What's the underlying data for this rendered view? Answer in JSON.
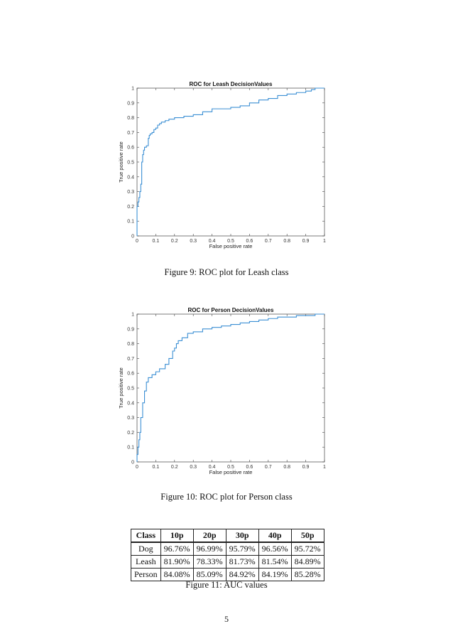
{
  "chart_data": [
    {
      "type": "line",
      "title": "ROC for Leash DecisionValues",
      "xlabel": "False positive rate",
      "ylabel": "True positive rate",
      "xlim": [
        0,
        1
      ],
      "ylim": [
        0,
        1
      ],
      "xticks": [
        "0",
        "0.1",
        "0.2",
        "0.3",
        "0.4",
        "0.5",
        "0.6",
        "0.7",
        "0.8",
        "0.9",
        "1"
      ],
      "yticks": [
        "0",
        "0.1",
        "0.2",
        "0.3",
        "0.4",
        "0.5",
        "0.6",
        "0.7",
        "0.8",
        "0.9",
        "1"
      ],
      "color": "#3b8fd4",
      "x": [
        0,
        0.0,
        0.005,
        0.01,
        0.015,
        0.02,
        0.025,
        0.03,
        0.035,
        0.04,
        0.05,
        0.06,
        0.065,
        0.07,
        0.08,
        0.09,
        0.1,
        0.11,
        0.12,
        0.13,
        0.14,
        0.15,
        0.17,
        0.2,
        0.25,
        0.3,
        0.35,
        0.4,
        0.45,
        0.5,
        0.55,
        0.6,
        0.65,
        0.7,
        0.75,
        0.8,
        0.85,
        0.9,
        0.93,
        0.95,
        1.0
      ],
      "y": [
        0,
        0.2,
        0.23,
        0.26,
        0.3,
        0.35,
        0.5,
        0.55,
        0.58,
        0.6,
        0.61,
        0.66,
        0.68,
        0.69,
        0.7,
        0.72,
        0.73,
        0.75,
        0.76,
        0.77,
        0.77,
        0.78,
        0.79,
        0.8,
        0.81,
        0.82,
        0.84,
        0.86,
        0.86,
        0.87,
        0.88,
        0.9,
        0.92,
        0.93,
        0.95,
        0.96,
        0.97,
        0.98,
        0.99,
        1.0,
        1.0
      ]
    },
    {
      "type": "line",
      "title": "ROC for Person DecisionValues",
      "xlabel": "False positive rate",
      "ylabel": "True positive rate",
      "xlim": [
        0,
        1
      ],
      "ylim": [
        0,
        1
      ],
      "xticks": [
        "0",
        "0.1",
        "0.2",
        "0.3",
        "0.4",
        "0.5",
        "0.6",
        "0.7",
        "0.8",
        "0.9",
        "1"
      ],
      "yticks": [
        "0",
        "0.1",
        "0.2",
        "0.3",
        "0.4",
        "0.5",
        "0.6",
        "0.7",
        "0.8",
        "0.9",
        "1"
      ],
      "color": "#3b8fd4",
      "x": [
        0,
        0.0,
        0.005,
        0.01,
        0.015,
        0.02,
        0.03,
        0.04,
        0.05,
        0.06,
        0.08,
        0.1,
        0.12,
        0.15,
        0.17,
        0.19,
        0.2,
        0.21,
        0.22,
        0.24,
        0.27,
        0.3,
        0.35,
        0.4,
        0.45,
        0.5,
        0.55,
        0.6,
        0.65,
        0.7,
        0.75,
        0.8,
        0.85,
        0.9,
        0.95,
        1.0
      ],
      "y": [
        0,
        0.05,
        0.1,
        0.15,
        0.2,
        0.3,
        0.4,
        0.48,
        0.54,
        0.57,
        0.59,
        0.61,
        0.63,
        0.66,
        0.7,
        0.75,
        0.77,
        0.8,
        0.82,
        0.84,
        0.87,
        0.88,
        0.9,
        0.91,
        0.92,
        0.93,
        0.94,
        0.95,
        0.96,
        0.97,
        0.98,
        0.98,
        0.99,
        0.99,
        1.0,
        1.0
      ]
    }
  ],
  "captions": {
    "fig9": "Figure 9:   ROC plot for Leash class",
    "fig10": "Figure 10: ROC plot for Person class",
    "fig11": "Figure 11: AUC values"
  },
  "auc_table": {
    "headers": [
      "Class",
      "10p",
      "20p",
      "30p",
      "40p",
      "50p"
    ],
    "rows": [
      [
        "Dog",
        "96.76%",
        "96.99%",
        "95.79%",
        "96.56%",
        "95.72%"
      ],
      [
        "Leash",
        "81.90%",
        "78.33%",
        "81.73%",
        "81.54%",
        "84.89%"
      ],
      [
        "Person",
        "84.08%",
        "85.09%",
        "84.92%",
        "84.19%",
        "85.28%"
      ]
    ]
  },
  "page_number": "5"
}
